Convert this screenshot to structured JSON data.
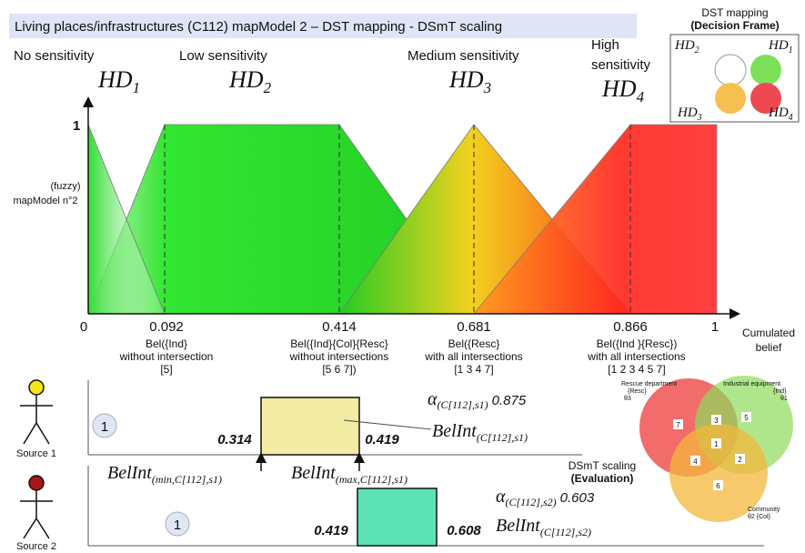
{
  "header": {
    "title": "Living places/infrastructures (C112) mapModel 2 – DST mapping -  DSmT scaling"
  },
  "levels": [
    {
      "label": "No sensitivity",
      "hd": "HD",
      "sub": "1"
    },
    {
      "label": "Low sensitivity",
      "hd": "HD",
      "sub": "2"
    },
    {
      "label": "Medium sensitivity",
      "hd": "HD",
      "sub": "3"
    },
    {
      "label": [
        "High",
        "sensitivity"
      ],
      "hd": "HD",
      "sub": "4"
    }
  ],
  "decision_frame": {
    "title": "DST mapping",
    "subtitle": "(Decision Frame)",
    "labels": [
      {
        "main": "HD",
        "sub": "2"
      },
      {
        "main": "HD",
        "sub": "1"
      },
      {
        "main": "HD",
        "sub": "3"
      },
      {
        "main": "HD",
        "sub": "4"
      }
    ]
  },
  "mapping": {
    "y_top": "1",
    "y_label": [
      "(fuzzy)",
      "mapModel n°2"
    ],
    "x_label": [
      "Cumulated",
      "belief"
    ],
    "ticks": [
      {
        "value": "0"
      },
      {
        "value": "0.092",
        "notes": [
          "Bel({Ind}",
          "without intersection",
          "[5]"
        ]
      },
      {
        "value": "0.414",
        "notes": [
          "Bel({Ind}{Col}{Resc}",
          "without intersections",
          "[5 6 7])"
        ]
      },
      {
        "value": "0.681",
        "notes": [
          "Bel({Resc}",
          "with all intersections",
          "[1 3 4 7]"
        ]
      },
      {
        "value": "0.866",
        "notes": [
          "Bel({Ind }{Resc})",
          "with all intersections",
          "[1 2 3 4 5 7]"
        ]
      },
      {
        "value": "1"
      }
    ]
  },
  "sources": [
    {
      "name": "Source 1",
      "badge": "1",
      "min": "0.314",
      "max": "0.419",
      "alpha": {
        "main": "α",
        "sub": "(C[112],s1)",
        "value": "0.875"
      },
      "belint": {
        "main": "BelInt",
        "sub": "(C[112],s1)"
      },
      "belint_min": {
        "main": "BelInt",
        "sub": "(min,C[112],s1)"
      },
      "belint_max": {
        "main": "BelInt",
        "sub": "(max,C[112],s1)"
      }
    },
    {
      "name": "Source 2",
      "badge": "1",
      "min": "0.419",
      "max": "0.608",
      "alpha": {
        "main": "α",
        "sub": "(C[112],s2)",
        "value": "0.603"
      },
      "belint": {
        "main": "BelInt",
        "sub": "(C[112],s2)"
      }
    }
  ],
  "dsmt": {
    "title": "DSmT scaling",
    "subtitle": "(Evaluation)",
    "sets": [
      {
        "lines": [
          "Rescue department",
          "{Resc}",
          "θ3"
        ]
      },
      {
        "lines": [
          "Industrial equipment",
          "{Ind}",
          "θ1"
        ]
      },
      {
        "lines": [
          "Community",
          "θ2  {Col}"
        ]
      }
    ],
    "regions": [
      "7",
      "3",
      "5",
      "1",
      "4",
      "2",
      "6"
    ]
  }
}
